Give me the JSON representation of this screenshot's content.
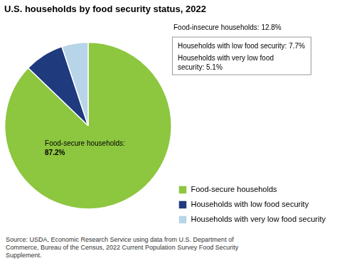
{
  "chart_data": {
    "type": "pie",
    "title": "U.S. households by food security status, 2022",
    "categories": [
      "Food-secure households",
      "Households with low food security",
      "Households with very low food security"
    ],
    "values": [
      87.2,
      7.7,
      5.1
    ],
    "colors": [
      "#8DC63F",
      "#1F3A7D",
      "#B8D4E8"
    ],
    "legend": "right",
    "annotations": [
      "Food-secure households:\n87.2%",
      "Food-insecure households: 12.8%",
      "Households with low food security: 7.7%",
      "Households with very low food\nsecurity: 5.1%",
      "Source: USDA, Economic Research Service using data from U.S. Department of\nCommerce, Bureau of the Census, 2022 Current Population Survey Food Security\nSupplement."
    ]
  }
}
